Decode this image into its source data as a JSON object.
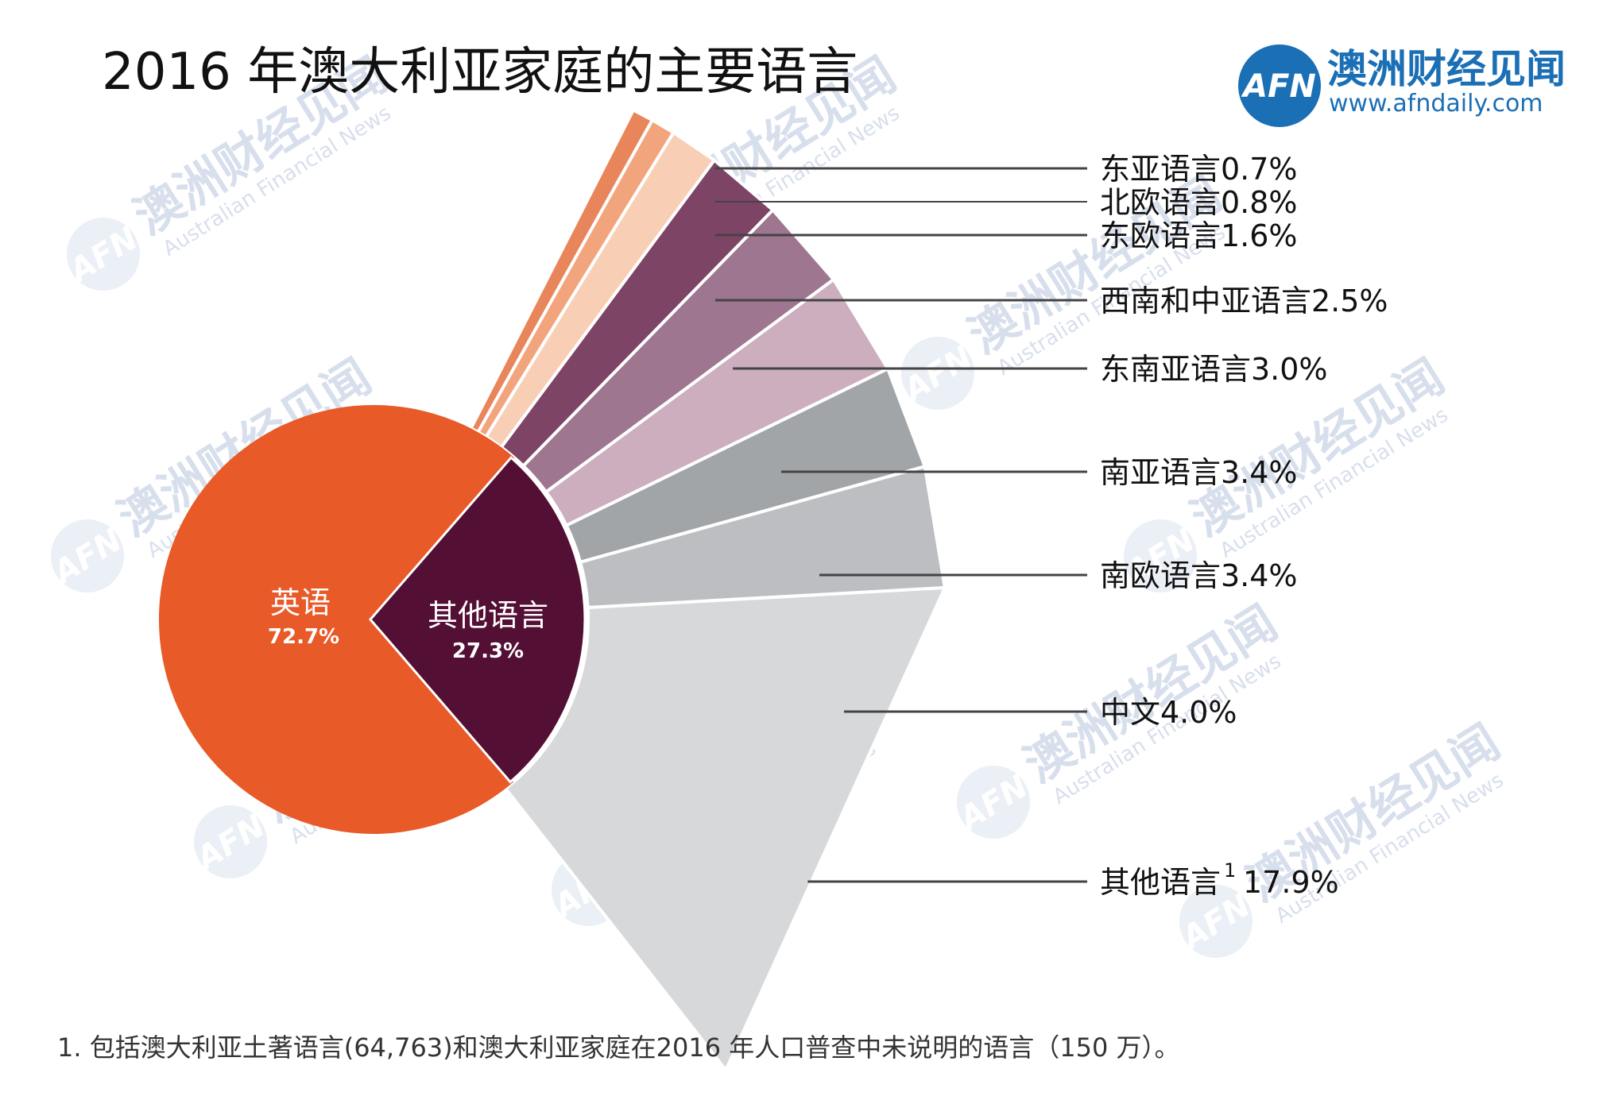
{
  "title": "2016 年澳大利亚家庭的主要语言",
  "brand": {
    "logo_text": "AFN",
    "name": "澳洲财经见闻",
    "url": "www.afndaily.com"
  },
  "watermark": {
    "name": "澳洲财经见闻",
    "sub": "Australian Financial News",
    "logo_text": "AFN"
  },
  "footnote": "1. 包括澳大利亚土著语言(64,763)和澳大利亚家庭在2016 年人口普查中未说明的语言（150 万）。",
  "chart_data": {
    "type": "pie",
    "title": "2016 年澳大利亚家庭的主要语言",
    "main": [
      {
        "name": "英语",
        "value": 72.7,
        "value_label": "72.7%",
        "color": "#e85a28"
      },
      {
        "name": "其他语言",
        "value": 27.3,
        "value_label": "27.3%",
        "color": "#540f34"
      }
    ],
    "breakdown": [
      {
        "name": "东亚语言",
        "label": "东亚语言0.7%",
        "value": 0.7,
        "color": "#e8855a"
      },
      {
        "name": "北欧语言",
        "label": "北欧语言0.8%",
        "value": 0.8,
        "color": "#f2a57d"
      },
      {
        "name": "东欧语言",
        "label": "东欧语言1.6%",
        "value": 1.6,
        "color": "#f8cfb5"
      },
      {
        "name": "西南和中亚语言",
        "label": "西南和中亚语言2.5%",
        "value": 2.5,
        "color": "#7d4466"
      },
      {
        "name": "东南亚语言",
        "label": "东南亚语言3.0%",
        "value": 3.0,
        "color": "#9e7690"
      },
      {
        "name": "南亚语言",
        "label": "南亚语言3.4%",
        "value": 3.4,
        "color": "#ccaebe"
      },
      {
        "name": "南欧语言",
        "label": "南欧语言3.4%",
        "value": 3.4,
        "color": "#a2a5a8"
      },
      {
        "name": "中文",
        "label": "中文4.0%",
        "value": 4.0,
        "color": "#bcbec1"
      },
      {
        "name": "其他语言",
        "label": "其他语言",
        "value": 17.9,
        "value_label": "17.9%",
        "footnote_mark": "1",
        "color": "#d7d8da"
      }
    ]
  }
}
